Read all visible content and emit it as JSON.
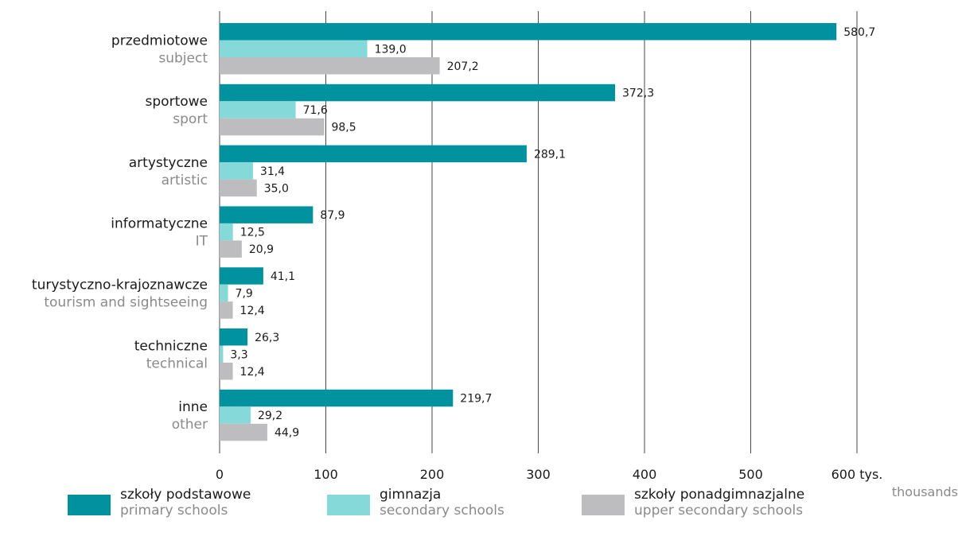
{
  "chart_data": {
    "type": "bar",
    "orientation": "horizontal",
    "categories": [
      {
        "pl": "przedmiotowe",
        "en": "subject"
      },
      {
        "pl": "sportowe",
        "en": "sport"
      },
      {
        "pl": "artystyczne",
        "en": "artistic"
      },
      {
        "pl": "informatyczne",
        "en": "IT"
      },
      {
        "pl": "turystyczno-krajoznawcze",
        "en": "tourism and sightseeing"
      },
      {
        "pl": "techniczne",
        "en": "technical"
      },
      {
        "pl": "inne",
        "en": "other"
      }
    ],
    "series": [
      {
        "name_pl": "szkoły podstawowe",
        "name_en": "primary schools",
        "color": "#00939f",
        "values": [
          580.7,
          372.3,
          289.1,
          87.9,
          41.1,
          26.3,
          219.7
        ],
        "labels": [
          "580,7",
          "372,3",
          "289,1",
          "87,9",
          "41,1",
          "26,3",
          "219,7"
        ]
      },
      {
        "name_pl": "gimnazja",
        "name_en": "secondary schools",
        "color": "#85d9d9",
        "values": [
          139.0,
          71.6,
          31.4,
          12.5,
          7.9,
          3.3,
          29.2
        ],
        "labels": [
          "139,0",
          "71,6",
          "31,4",
          "12,5",
          "7,9",
          "3,3",
          "29,2"
        ]
      },
      {
        "name_pl": "szkoły ponadgimnazjalne",
        "name_en": "upper secondary schools",
        "color": "#bdbdbf",
        "values": [
          207.2,
          98.5,
          35.0,
          20.9,
          12.4,
          12.4,
          44.9
        ],
        "labels": [
          "207,2",
          "98,5",
          "35,0",
          "20,9",
          "12,4",
          "12,4",
          "44,9"
        ]
      }
    ],
    "xlim": [
      0,
      600
    ],
    "xticks": [
      0,
      100,
      200,
      300,
      400,
      500,
      600
    ],
    "xtick_labels": [
      "0",
      "100",
      "200",
      "300",
      "400",
      "500",
      "600"
    ],
    "unit_pl": "tys.",
    "unit_en": "thousands",
    "grid": "vertical",
    "legend_position": "bottom"
  }
}
